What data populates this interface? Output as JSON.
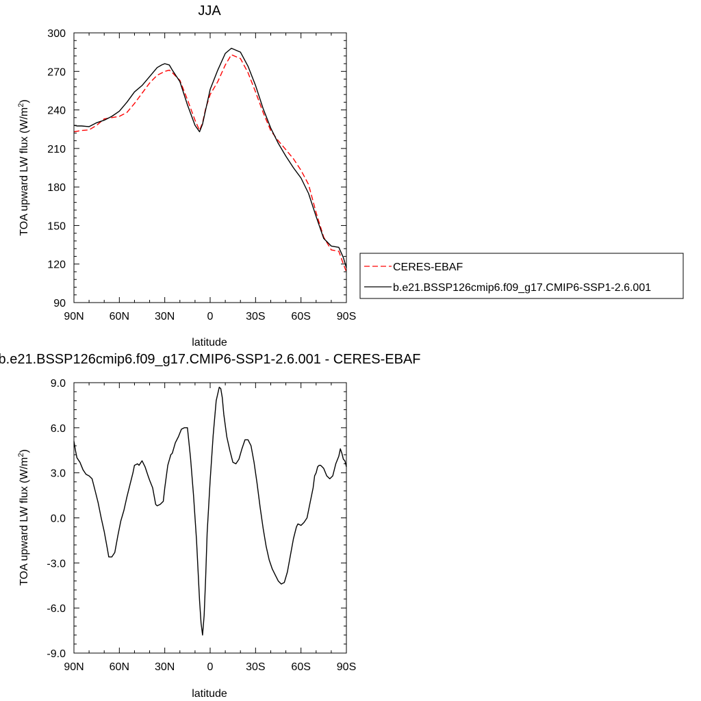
{
  "colors": {
    "model": "#000000",
    "obs": "#ff0000",
    "background": "#ffffff"
  },
  "chart_data": [
    {
      "type": "line",
      "title": "JJA",
      "xlabel": "latitude",
      "ylabel": "TOA upward LW flux (W/m",
      "ylabel_sup": "2",
      "ylabel_close": ")",
      "xlim": [
        90,
        -90
      ],
      "ylim": [
        90,
        300
      ],
      "xticks": [
        90,
        60,
        30,
        0,
        -30,
        -60,
        -90
      ],
      "xticklabels": [
        "90N",
        "60N",
        "30N",
        "0",
        "30S",
        "60S",
        "90S"
      ],
      "yticks": [
        90,
        120,
        150,
        180,
        210,
        240,
        270,
        300
      ],
      "yticklabels": [
        "90",
        "120",
        "150",
        "180",
        "210",
        "240",
        "270",
        "300"
      ],
      "grid": false,
      "legend_position": "right",
      "series": [
        {
          "name": "CERES-EBAF",
          "style": "dashed",
          "color": "#ff0000",
          "x": [
            90,
            85,
            80,
            75,
            70,
            65,
            60,
            55,
            50,
            45,
            40,
            35,
            30,
            27,
            25,
            20,
            15,
            10,
            7,
            5,
            3,
            0,
            -5,
            -10,
            -14,
            -20,
            -25,
            -30,
            -35,
            -40,
            -45,
            -50,
            -55,
            -60,
            -65,
            -70,
            -75,
            -80,
            -85,
            -88,
            -90
          ],
          "y": [
            223,
            224,
            224.5,
            228,
            233,
            234,
            235,
            238,
            245,
            253,
            261,
            267,
            270,
            271,
            269,
            263,
            248,
            232,
            224,
            230,
            241,
            252,
            262,
            275,
            283,
            280,
            269,
            254,
            238,
            224,
            216,
            209,
            202,
            193,
            182,
            160,
            141,
            131,
            130,
            120,
            114
          ]
        },
        {
          "name": "b.e21.BSSP126cmip6.f09_g17.CMIP6-SSP1-2.6.001",
          "style": "solid",
          "color": "#000000",
          "x": [
            90,
            88,
            85,
            80,
            75,
            70,
            65,
            60,
            55,
            50,
            45,
            40,
            35,
            32,
            30,
            27,
            25,
            20,
            15,
            10,
            7,
            5,
            3,
            0,
            -5,
            -10,
            -14,
            -20,
            -25,
            -30,
            -35,
            -40,
            -45,
            -50,
            -55,
            -60,
            -65,
            -70,
            -75,
            -80,
            -85,
            -88,
            -90
          ],
          "y": [
            228,
            227.5,
            227.5,
            227,
            230,
            232,
            235,
            239,
            246,
            254,
            259,
            266,
            273,
            275,
            276,
            275,
            271,
            262,
            244,
            228,
            223,
            229,
            240,
            256,
            271,
            284,
            288,
            285,
            274,
            259,
            241,
            226,
            214,
            204,
            195,
            187,
            175,
            157,
            140,
            134,
            133,
            125,
            117
          ]
        }
      ]
    },
    {
      "type": "line",
      "title": "b.e21.BSSP126cmip6.f09_g17.CMIP6-SSP1-2.6.001 - CERES-EBAF",
      "xlabel": "latitude",
      "ylabel": "TOA upward LW flux (W/m",
      "ylabel_sup": "2",
      "ylabel_close": ")",
      "xlim": [
        90,
        -90
      ],
      "ylim": [
        -9.0,
        9.0
      ],
      "xticks": [
        90,
        60,
        30,
        0,
        -30,
        -60,
        -90
      ],
      "xticklabels": [
        "90N",
        "60N",
        "30N",
        "0",
        "30S",
        "60S",
        "90S"
      ],
      "yticks": [
        -9,
        -6,
        -3,
        0,
        3,
        6,
        9
      ],
      "yticklabels": [
        "-9.0",
        "-6.0",
        "-3.0",
        "0.0",
        "3.0",
        "6.0",
        "9.0"
      ],
      "grid": false,
      "series": [
        {
          "name": "b.e21.BSSP126cmip6.f09_g17.CMIP6-SSP1-2.6.001 - CERES-EBAF",
          "style": "solid",
          "color": "#000000",
          "x": [
            90,
            89,
            88,
            86,
            84,
            82,
            80,
            78,
            76,
            74,
            72,
            70,
            68,
            67,
            65,
            63,
            61,
            59,
            57,
            55,
            53,
            51,
            50,
            48,
            47,
            45,
            43,
            41,
            40,
            38,
            36,
            35,
            33,
            31,
            30,
            28,
            26,
            25,
            23,
            21,
            19,
            17,
            15,
            13,
            11,
            9,
            8,
            7,
            6,
            5,
            4,
            3,
            2,
            0,
            -2,
            -4,
            -6,
            -7,
            -8,
            -9,
            -11,
            -13,
            -15,
            -17,
            -19,
            -21,
            -23,
            -25,
            -27,
            -29,
            -31,
            -33,
            -35,
            -37,
            -39,
            -41,
            -43,
            -45,
            -47,
            -49,
            -51,
            -53,
            -55,
            -56,
            -57,
            -58,
            -60,
            -62,
            -64,
            -66,
            -68,
            -69,
            -70,
            -71,
            -72,
            -73,
            -74,
            -75,
            -77,
            -79,
            -81,
            -83,
            -85,
            -86,
            -87,
            -88,
            -89,
            -90
          ],
          "y": [
            5.1,
            4.5,
            4.0,
            3.7,
            3.2,
            2.9,
            2.8,
            2.6,
            1.8,
            1.0,
            0.0,
            -0.9,
            -2.0,
            -2.6,
            -2.6,
            -2.3,
            -1.2,
            -0.2,
            0.5,
            1.4,
            2.2,
            3.0,
            3.5,
            3.6,
            3.5,
            3.8,
            3.4,
            2.8,
            2.5,
            2.0,
            0.9,
            0.8,
            0.9,
            1.1,
            2.0,
            3.5,
            4.2,
            4.3,
            5.0,
            5.4,
            5.9,
            6.0,
            6.0,
            4.0,
            1.5,
            -1.5,
            -3.5,
            -5.5,
            -7.0,
            -7.8,
            -6.5,
            -4.0,
            -1.0,
            2.5,
            5.5,
            7.8,
            8.7,
            8.6,
            8.0,
            6.9,
            5.4,
            4.5,
            3.7,
            3.6,
            3.9,
            4.6,
            5.2,
            5.2,
            4.8,
            3.7,
            2.3,
            0.7,
            -0.7,
            -1.9,
            -2.8,
            -3.4,
            -3.8,
            -4.2,
            -4.4,
            -4.3,
            -3.6,
            -2.5,
            -1.4,
            -1.0,
            -0.6,
            -0.4,
            -0.5,
            -0.3,
            0.0,
            1.0,
            2.0,
            2.8,
            3.0,
            3.4,
            3.5,
            3.5,
            3.4,
            3.3,
            2.8,
            2.6,
            2.8,
            3.6,
            4.1,
            4.6,
            4.3,
            3.9,
            3.8,
            3.4
          ]
        }
      ]
    }
  ],
  "legend": {
    "entries": [
      {
        "label": "CERES-EBAF",
        "style": "dashed",
        "color": "#ff0000"
      },
      {
        "label": "b.e21.BSSP126cmip6.f09_g17.CMIP6-SSP1-2.6.001",
        "style": "solid",
        "color": "#000000"
      }
    ]
  }
}
